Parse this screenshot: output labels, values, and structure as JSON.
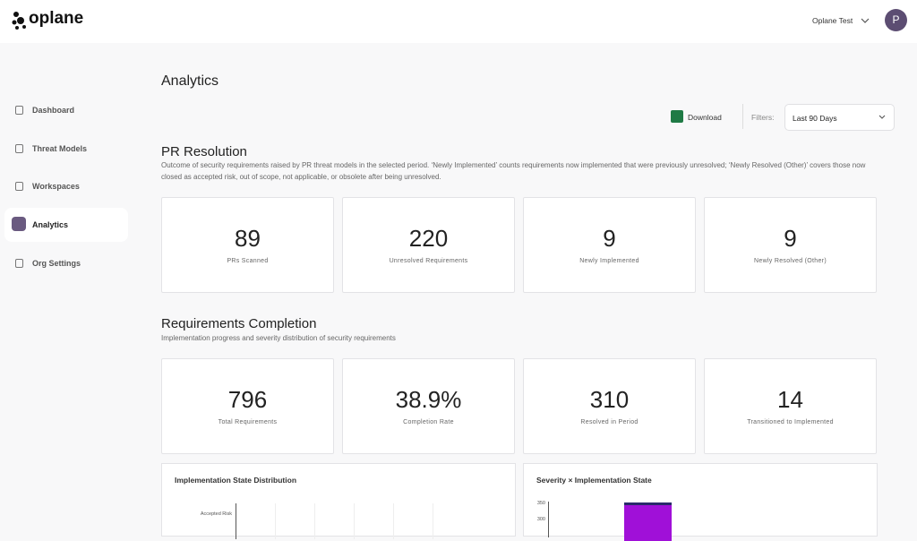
{
  "header": {
    "logo": "oplane",
    "user": "Oplane Test",
    "avatar": "P"
  },
  "sidebar": {
    "items": [
      "Dashboard",
      "Threat Models",
      "Workspaces",
      "Analytics",
      "Org Settings"
    ],
    "active": 3
  },
  "page": {
    "title": "Analytics",
    "download": "Download",
    "filter_label": "Filters:",
    "filter_value": "Last 90 Days"
  },
  "pr_resolution": {
    "title": "PR Resolution",
    "description": "Outcome of security requirements raised by PR threat models in the selected period. ‘Newly Implemented’ counts requirements now implemented that were previously unresolved; ‘Newly Resolved (Other)’ covers those now closed as accepted risk, out of scope, not applicable, or obsolete after being unresolved.",
    "cards": [
      {
        "value": "89",
        "label": "PRs Scanned"
      },
      {
        "value": "220",
        "label": "Unresolved Requirements"
      },
      {
        "value": "9",
        "label": "Newly Implemented"
      },
      {
        "value": "9",
        "label": "Newly Resolved (Other)"
      }
    ]
  },
  "requirements_completion": {
    "title": "Requirements Completion",
    "description": "Implementation progress and severity distribution of security requirements",
    "cards": [
      {
        "value": "796",
        "label": "Total Requirements"
      },
      {
        "value": "38.9%",
        "label": "Completion Rate"
      },
      {
        "value": "310",
        "label": "Resolved in Period"
      },
      {
        "value": "14",
        "label": "Transitioned to Implemented"
      }
    ]
  },
  "charts": [
    {
      "title": "Implementation State Distribution",
      "labels": [
        "Accepted Risk"
      ]
    },
    {
      "title": "Severity × Implementation State",
      "ticks": [
        "350",
        "300"
      ]
    }
  ]
}
